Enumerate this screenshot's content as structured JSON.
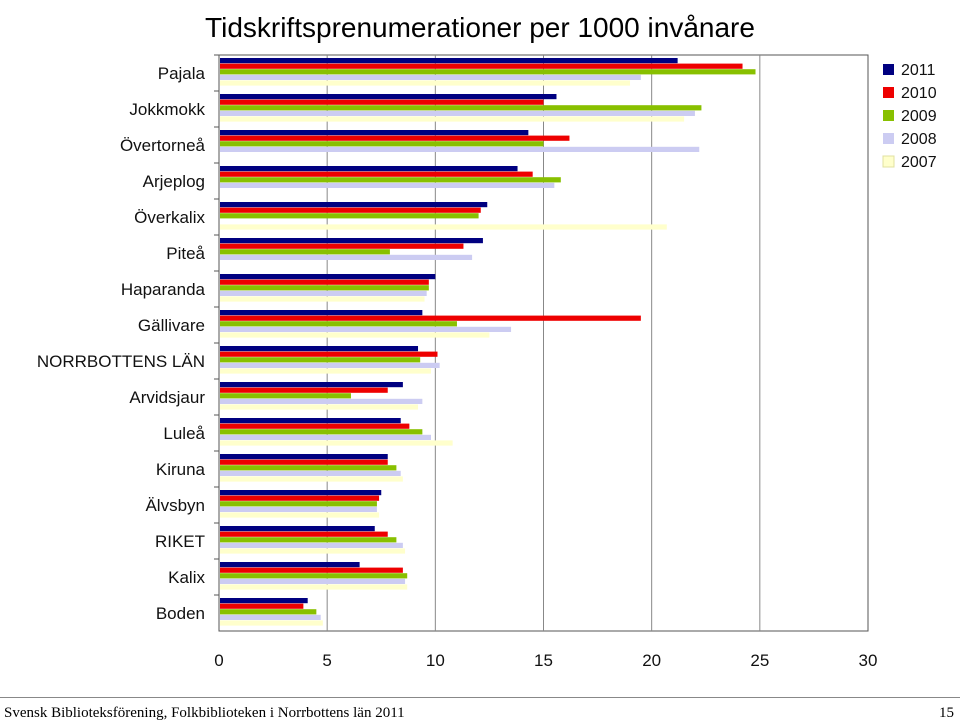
{
  "chart_data": {
    "type": "bar",
    "orientation": "horizontal",
    "title": "Tidskriftsprenumerationer per 1000 invånare",
    "xlabel": "",
    "ylabel": "",
    "xlim": [
      0,
      30
    ],
    "xticks": [
      0,
      5,
      10,
      15,
      20,
      25,
      30
    ],
    "grid": "vertical",
    "legend_position": "top-right",
    "categories": [
      "Pajala",
      "Jokkmokk",
      "Övertorneå",
      "Arjeplog",
      "Överkalix",
      "Piteå",
      "Haparanda",
      "Gällivare",
      "NORRBOTTENS LÄN",
      "Arvidsjaur",
      "Luleå",
      "Kiruna",
      "Älvsbyn",
      "RIKET",
      "Kalix",
      "Boden"
    ],
    "series": [
      {
        "name": "2011",
        "color": "#000080",
        "values": [
          21.2,
          15.6,
          14.3,
          13.8,
          12.4,
          12.2,
          10.0,
          9.4,
          9.2,
          8.5,
          8.4,
          7.8,
          7.5,
          7.2,
          6.5,
          4.1
        ]
      },
      {
        "name": "2010",
        "color": "#ee0000",
        "values": [
          24.2,
          15.0,
          16.2,
          14.5,
          12.1,
          11.3,
          9.7,
          19.5,
          10.1,
          7.8,
          8.8,
          7.8,
          7.4,
          7.8,
          8.5,
          3.9
        ]
      },
      {
        "name": "2009",
        "color": "#88c000",
        "values": [
          24.8,
          22.3,
          15.0,
          15.8,
          12.0,
          7.9,
          9.7,
          11.0,
          9.3,
          6.1,
          9.4,
          8.2,
          7.3,
          8.2,
          8.7,
          4.5
        ]
      },
      {
        "name": "2008",
        "color": "#ccccf2",
        "values": [
          19.5,
          22.0,
          22.2,
          15.5,
          null,
          11.7,
          9.6,
          13.5,
          10.2,
          9.4,
          9.8,
          8.4,
          7.3,
          8.5,
          8.6,
          4.7
        ]
      },
      {
        "name": "2007",
        "color": "#ffffcc",
        "values": [
          19.0,
          21.5,
          null,
          null,
          20.7,
          null,
          9.5,
          12.5,
          9.8,
          9.2,
          10.8,
          8.5,
          7.4,
          8.6,
          8.7,
          4.8
        ]
      }
    ]
  },
  "footer": {
    "text": "Svensk Biblioteksförening, Folkbiblioteken i Norrbottens län 2011",
    "page_number": "15"
  }
}
